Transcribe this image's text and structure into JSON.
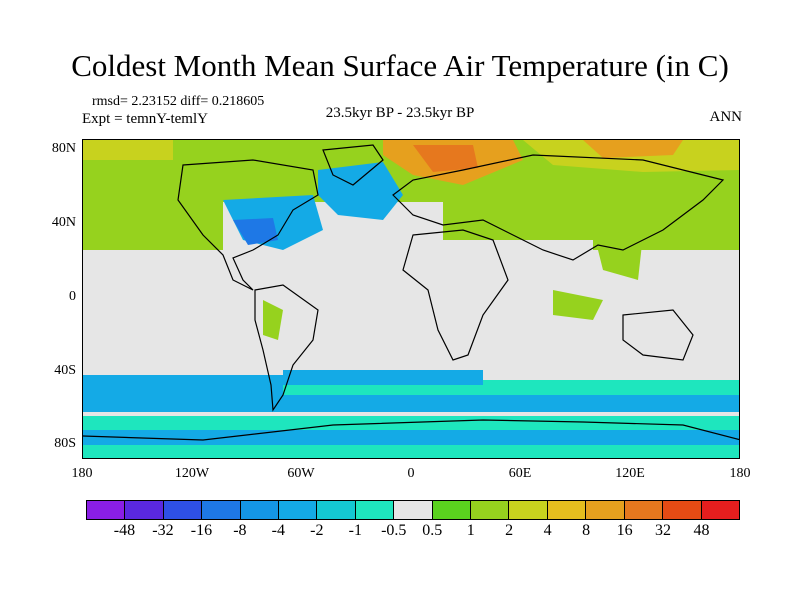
{
  "title": "Coldest Month Mean Surface Air Temperature (in C)",
  "stats": "rmsd= 2.23152 diff= 0.218605",
  "expt": "Expt = temnY-temlY",
  "period": "23.5kyr BP - 23.5kyr BP",
  "season": "ANN",
  "lat_ticks": [
    "80N",
    "40N",
    "0",
    "40S",
    "80S"
  ],
  "lat_values": [
    80,
    40,
    0,
    -40,
    -80
  ],
  "lon_ticks": [
    "180",
    "120W",
    "60W",
    "0",
    "60E",
    "120E",
    "180"
  ],
  "lon_values": [
    -180,
    -120,
    -60,
    0,
    60,
    120,
    180
  ],
  "colorbar": {
    "labels": [
      "-48",
      "-32",
      "-16",
      "-8",
      "-4",
      "-2",
      "-1",
      "-0.5",
      "0.5",
      "1",
      "2",
      "4",
      "8",
      "16",
      "32",
      "48"
    ],
    "colors": [
      "#8a1ee6",
      "#5a28e0",
      "#2e50e6",
      "#1e78e6",
      "#1496e6",
      "#14aae6",
      "#14c8d2",
      "#1ee6be",
      "#e6e6e6",
      "#5ad21e",
      "#96d21e",
      "#c8d21e",
      "#e6be1e",
      "#e6a01e",
      "#e6781e",
      "#e64b14",
      "#e61e1e"
    ]
  },
  "map_colors": {
    "ocean": "#e6e6e6",
    "cold": "#14aae6",
    "cool": "#1ee6be",
    "deep": "#1e78e6",
    "warm": "#96d21e",
    "warmer": "#c8d21e",
    "hot": "#e6a01e",
    "hotter": "#e6781e"
  }
}
